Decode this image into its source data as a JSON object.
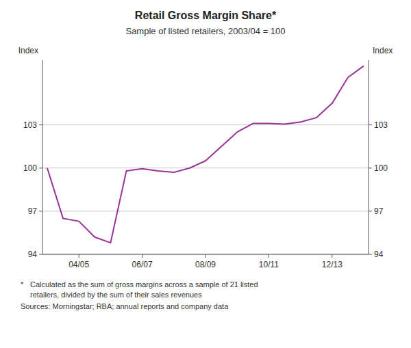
{
  "chart_data": {
    "type": "line",
    "title": "Retail Gross Margin Share*",
    "subtitle": "Sample of listed retailers, 2003/04 = 100",
    "ylabel": "Index",
    "y2label": "Index",
    "footnotes": [
      "*",
      "Calculated as the sum of gross margins across a sample of 21 listed",
      "retailers, divided by the sum of their sales revenues",
      "Sources: Morningstar; RBA; annual reports and company data"
    ],
    "x": [
      0,
      1,
      2,
      3,
      4,
      5,
      6,
      7,
      8,
      9,
      10,
      11,
      12,
      13,
      14,
      15,
      16,
      17,
      18,
      19,
      20
    ],
    "values": [
      100.0,
      96.5,
      96.3,
      95.2,
      94.8,
      99.8,
      99.95,
      99.8,
      99.7,
      100.0,
      100.5,
      101.5,
      102.5,
      103.1,
      103.1,
      103.05,
      103.2,
      103.5,
      104.5,
      106.3,
      107.1
    ],
    "color": "#993399",
    "xlim": [
      -0.3,
      20.3
    ],
    "xticks": [
      {
        "value": 2,
        "label": "04/05"
      },
      {
        "value": 6,
        "label": "06/07"
      },
      {
        "value": 10,
        "label": "08/09"
      },
      {
        "value": 14,
        "label": "10/11"
      },
      {
        "value": 18,
        "label": "12/13"
      }
    ],
    "ylim": [
      94,
      107.5
    ],
    "yticks": [
      94,
      97,
      100,
      103
    ],
    "y2lim": [
      94,
      107.5
    ],
    "y2ticks": [
      94,
      97,
      100,
      103
    ],
    "grid": true
  }
}
